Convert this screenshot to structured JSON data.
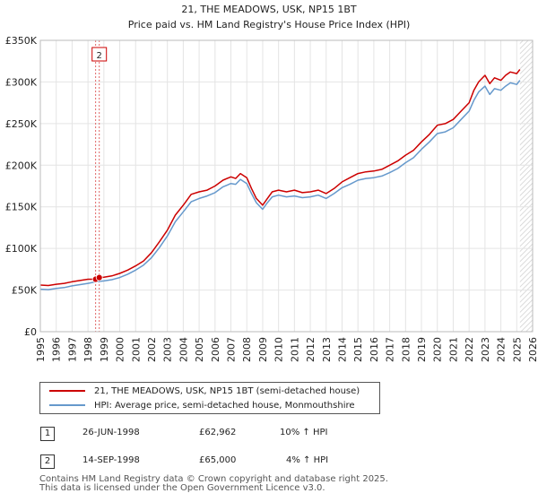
{
  "chart_data": {
    "type": "line",
    "title": "21, THE MEADOWS, USK, NP15 1BT",
    "subtitle": "Price paid vs. HM Land Registry's House Price Index (HPI)",
    "xlabel": "",
    "ylabel": "",
    "xlim": [
      1995,
      2026
    ],
    "ylim": [
      0,
      350000
    ],
    "x_ticks": [
      "1995",
      "1996",
      "1997",
      "1998",
      "1999",
      "2000",
      "2001",
      "2002",
      "2003",
      "2004",
      "2005",
      "2006",
      "2007",
      "2008",
      "2009",
      "2010",
      "2011",
      "2012",
      "2013",
      "2014",
      "2015",
      "2016",
      "2017",
      "2018",
      "2019",
      "2020",
      "2021",
      "2022",
      "2023",
      "2024",
      "2025",
      "2026"
    ],
    "y_ticks": [
      {
        "value": 0,
        "label": "£0"
      },
      {
        "value": 50000,
        "label": "£50K"
      },
      {
        "value": 100000,
        "label": "£100K"
      },
      {
        "value": 150000,
        "label": "£150K"
      },
      {
        "value": 200000,
        "label": "£200K"
      },
      {
        "value": 250000,
        "label": "£250K"
      },
      {
        "value": 300000,
        "label": "£300K"
      },
      {
        "value": 350000,
        "label": "£350K"
      }
    ],
    "grid": true,
    "forecast_start": 2025.2,
    "series": [
      {
        "name": "21, THE MEADOWS, USK, NP15 1BT (semi-detached house)",
        "color": "#cc0000",
        "x": [
          1995,
          1995.5,
          1996,
          1996.5,
          1997,
          1997.5,
          1998,
          1998.48,
          1998.7,
          1999,
          1999.5,
          2000,
          2000.5,
          2001,
          2001.5,
          2002,
          2002.5,
          2003,
          2003.5,
          2004,
          2004.5,
          2005,
          2005.5,
          2006,
          2006.5,
          2007,
          2007.3,
          2007.6,
          2008,
          2008.3,
          2008.6,
          2009,
          2009.3,
          2009.6,
          2010,
          2010.5,
          2011,
          2011.5,
          2012,
          2012.5,
          2013,
          2013.5,
          2014,
          2014.5,
          2015,
          2015.5,
          2016,
          2016.5,
          2017,
          2017.5,
          2018,
          2018.5,
          2019,
          2019.5,
          2020,
          2020.5,
          2021,
          2021.5,
          2022,
          2022.3,
          2022.6,
          2023,
          2023.3,
          2023.6,
          2024,
          2024.3,
          2024.6,
          2025,
          2025.2
        ],
        "y": [
          56000,
          55500,
          57000,
          58000,
          60000,
          61500,
          63000,
          62962,
          65000,
          65500,
          67000,
          70000,
          74000,
          79000,
          85000,
          95000,
          108000,
          122000,
          140000,
          152000,
          165000,
          168000,
          170000,
          175000,
          182000,
          186000,
          184000,
          190000,
          185000,
          172000,
          160000,
          152000,
          160000,
          168000,
          170000,
          168000,
          170000,
          167000,
          168000,
          170000,
          166000,
          172000,
          180000,
          185000,
          190000,
          192000,
          193000,
          195000,
          200000,
          205000,
          212000,
          218000,
          228000,
          237000,
          248000,
          250000,
          255000,
          265000,
          275000,
          290000,
          300000,
          308000,
          298000,
          305000,
          302000,
          308000,
          312000,
          310000,
          315000
        ]
      },
      {
        "name": "HPI: Average price, semi-detached house, Monmouthshire",
        "color": "#6699cc",
        "x": [
          1995,
          1995.5,
          1996,
          1996.5,
          1997,
          1997.5,
          1998,
          1998.5,
          1999,
          1999.5,
          2000,
          2000.5,
          2001,
          2001.5,
          2002,
          2002.5,
          2003,
          2003.5,
          2004,
          2004.5,
          2005,
          2005.5,
          2006,
          2006.5,
          2007,
          2007.3,
          2007.6,
          2008,
          2008.3,
          2008.6,
          2009,
          2009.3,
          2009.6,
          2010,
          2010.5,
          2011,
          2011.5,
          2012,
          2012.5,
          2013,
          2013.5,
          2014,
          2014.5,
          2015,
          2015.5,
          2016,
          2016.5,
          2017,
          2017.5,
          2018,
          2018.5,
          2019,
          2019.5,
          2020,
          2020.5,
          2021,
          2021.5,
          2022,
          2022.3,
          2022.6,
          2023,
          2023.3,
          2023.6,
          2024,
          2024.3,
          2024.6,
          2025,
          2025.2
        ],
        "y": [
          51000,
          50500,
          52000,
          53000,
          55000,
          56500,
          58000,
          60000,
          61000,
          62500,
          65000,
          69000,
          74000,
          80000,
          89000,
          101000,
          115000,
          132000,
          144000,
          156000,
          160000,
          163000,
          167000,
          174000,
          178000,
          177000,
          183000,
          178000,
          166000,
          155000,
          147000,
          155000,
          162000,
          164000,
          162000,
          163000,
          161000,
          162000,
          164000,
          160000,
          166000,
          173000,
          177000,
          182000,
          184000,
          185000,
          187000,
          191000,
          196000,
          203000,
          209000,
          219000,
          228000,
          238000,
          240000,
          245000,
          255000,
          265000,
          278000,
          288000,
          295000,
          285000,
          292000,
          290000,
          295000,
          299000,
          297000,
          302000
        ]
      }
    ],
    "sales": [
      {
        "num": "1",
        "date": "26-JUN-1998",
        "price": "£62,962",
        "hpi": "10% ↑ HPI",
        "x": 1998.48,
        "y": 62962
      },
      {
        "num": "2",
        "date": "14-SEP-1998",
        "price": "£65,000",
        "hpi": "4% ↑ HPI",
        "x": 1998.71,
        "y": 65000
      }
    ],
    "marker_label": "2"
  },
  "footer": {
    "line1": "Contains HM Land Registry data © Crown copyright and database right 2025.",
    "line2": "This data is licensed under the Open Government Licence v3.0."
  }
}
